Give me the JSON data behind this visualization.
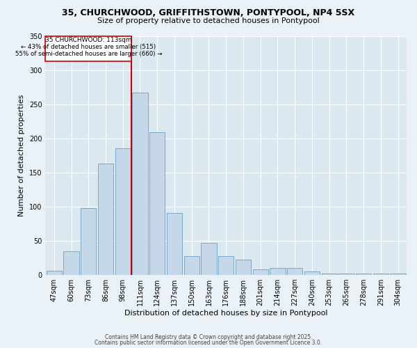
{
  "title": "35, CHURCHWOOD, GRIFFITHSTOWN, PONTYPOOL, NP4 5SX",
  "subtitle": "Size of property relative to detached houses in Pontypool",
  "xlabel": "Distribution of detached houses by size in Pontypool",
  "ylabel": "Number of detached properties",
  "categories": [
    "47sqm",
    "60sqm",
    "73sqm",
    "86sqm",
    "98sqm",
    "111sqm",
    "124sqm",
    "137sqm",
    "150sqm",
    "163sqm",
    "176sqm",
    "188sqm",
    "201sqm",
    "214sqm",
    "227sqm",
    "240sqm",
    "253sqm",
    "265sqm",
    "278sqm",
    "291sqm",
    "304sqm"
  ],
  "values": [
    6,
    35,
    98,
    163,
    185,
    267,
    209,
    91,
    28,
    47,
    28,
    22,
    8,
    10,
    10,
    5,
    2,
    2,
    2,
    2,
    2
  ],
  "bar_color": "#c5d8ea",
  "bar_edge_color": "#7aaac8",
  "ref_line_color": "#cc0000",
  "box_color": "#ffffff",
  "box_edge_color": "#cc0000",
  "ylim": [
    0,
    350
  ],
  "yticks": [
    0,
    50,
    100,
    150,
    200,
    250,
    300,
    350
  ],
  "bg_color": "#dce8f0",
  "fig_bg_color": "#eaf1f7",
  "grid_color": "#ffffff",
  "title_fontsize": 9,
  "subtitle_fontsize": 8,
  "xlabel_fontsize": 8,
  "ylabel_fontsize": 8,
  "tick_fontsize": 7,
  "footer1": "Contains HM Land Registry data © Crown copyright and database right 2025.",
  "footer2": "Contains public sector information licensed under the Open Government Licence 3.0.",
  "footer_fontsize": 5.5,
  "ref_line_index": 5,
  "annotation_title": "35 CHURCHWOOD: 113sqm",
  "annotation_line1": "← 43% of detached houses are smaller (515)",
  "annotation_line2": "55% of semi-detached houses are larger (660) →"
}
